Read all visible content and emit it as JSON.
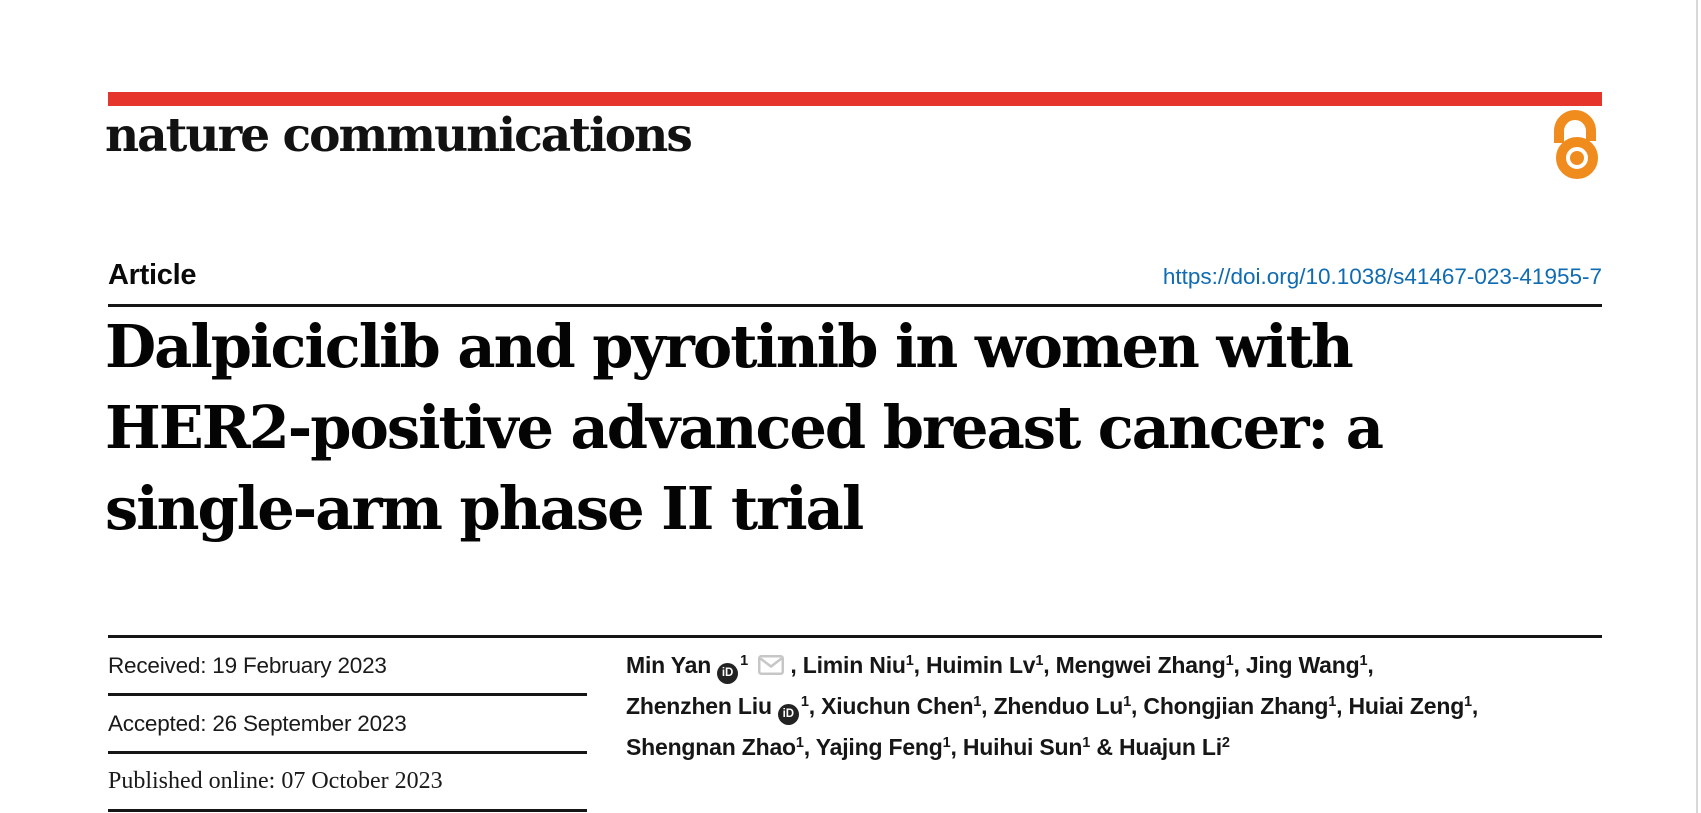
{
  "colors": {
    "brand_red": "#e6352b",
    "open_access_orange": "#f08c1e",
    "link_blue": "#0f6bb2"
  },
  "masthead": {
    "journal_name": "nature communications"
  },
  "article_header": {
    "type_label": "Article",
    "doi": "https://doi.org/10.1038/s41467-023-41955-7",
    "title_lines": [
      "Dalpiciclib and pyrotinib in women with",
      "HER2-positive advanced breast cancer: a",
      "single-arm phase II trial"
    ]
  },
  "history": [
    {
      "label": "Received",
      "value": "19 February 2023"
    },
    {
      "label": "Accepted",
      "value": "26 September 2023"
    },
    {
      "label": "Published online",
      "value": "07 October 2023"
    }
  ],
  "icons": {
    "open_access": "open-padlock-icon",
    "orcid_label": "iD",
    "email": "envelope-icon"
  },
  "authors": {
    "lines": [
      [
        {
          "name": "Min Yan",
          "orcid": true,
          "sup": "1",
          "email": true,
          "sep": ", "
        },
        {
          "name": "Limin Niu",
          "sup": "1",
          "sep": ", "
        },
        {
          "name": "Huimin Lv",
          "sup": "1",
          "sep": ", "
        },
        {
          "name": "Mengwei Zhang",
          "sup": "1",
          "sep": ", "
        },
        {
          "name": "Jing Wang",
          "sup": "1",
          "sep": ","
        }
      ],
      [
        {
          "name": "Zhenzhen Liu",
          "orcid": true,
          "sup": "1",
          "sep": ", "
        },
        {
          "name": "Xiuchun Chen",
          "sup": "1",
          "sep": ", "
        },
        {
          "name": "Zhenduo Lu",
          "sup": "1",
          "sep": ", "
        },
        {
          "name": "Chongjian Zhang",
          "sup": "1",
          "sep": ", "
        },
        {
          "name": "Huiai Zeng",
          "sup": "1",
          "sep": ","
        }
      ],
      [
        {
          "name": "Shengnan Zhao",
          "sup": "1",
          "sep": ", "
        },
        {
          "name": "Yajing Feng",
          "sup": "1",
          "sep": ", "
        },
        {
          "name": "Huihui Sun",
          "sup": "1",
          "sep": " & "
        },
        {
          "name": "Huajun Li",
          "sup": "2",
          "sep": ""
        }
      ]
    ]
  }
}
